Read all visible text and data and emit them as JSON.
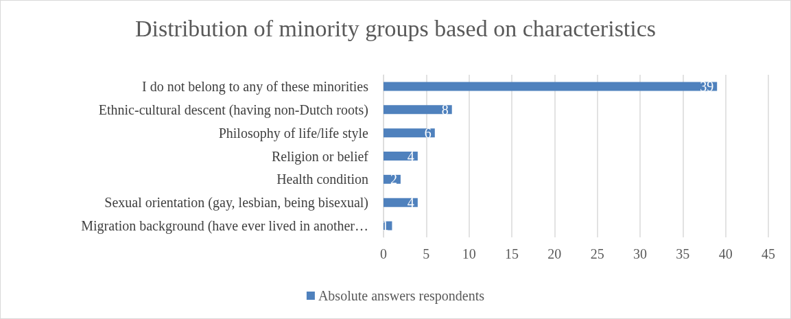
{
  "chart_data": {
    "type": "bar",
    "orientation": "horizontal",
    "title": "Distribution of minority groups based on characteristics",
    "categories": [
      "I do not belong to any of these minorities",
      "Ethnic-cultural descent (having non-Dutch roots)",
      "Philosophy of life/life style",
      "Religion or belief",
      "Health condition",
      "Sexual orientation (gay, lesbian, being bisexual)",
      "Migration background (have ever lived in another…"
    ],
    "series": [
      {
        "name": "Absolute answers respondents",
        "color": "#4f81bd",
        "values": [
          39,
          8,
          6,
          4,
          2,
          4,
          1
        ]
      }
    ],
    "xlim": [
      0,
      45
    ],
    "xticks": [
      0,
      5,
      10,
      15,
      20,
      25,
      30,
      35,
      40,
      45
    ],
    "grid": "x",
    "legend": "bottom",
    "data_labels": true
  }
}
